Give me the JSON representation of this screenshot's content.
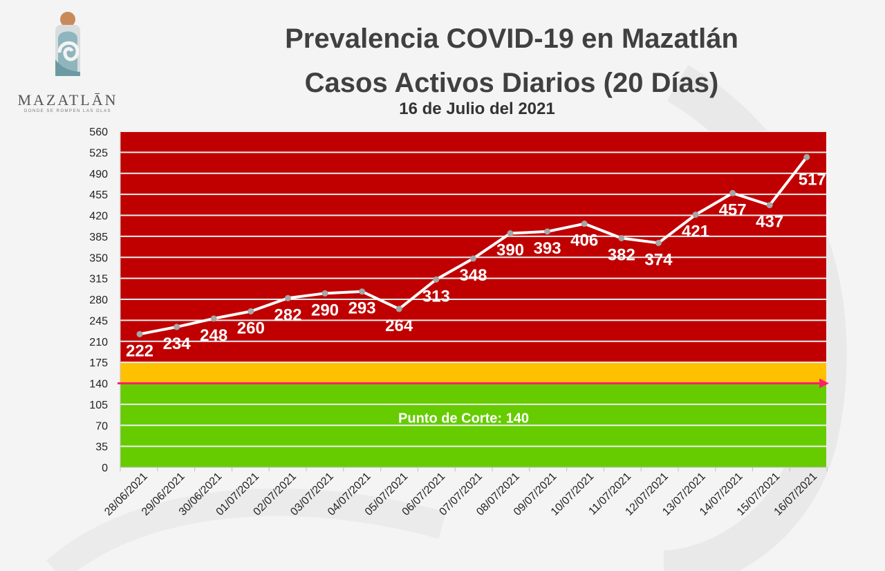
{
  "logo": {
    "name": "MAZATLĀN",
    "tagline": "DONDE SE ROMPEN LAS OLAS"
  },
  "title_line1": "Prevalencia COVID-19 en Mazatlán",
  "title_line2": "Casos Activos Diarios (20 Días)",
  "subtitle": "16 de Julio del 2021",
  "chart_data": {
    "type": "line",
    "categories": [
      "28/06/2021",
      "29/06/2021",
      "30/06/2021",
      "01/07/2021",
      "02/07/2021",
      "03/07/2021",
      "04/07/2021",
      "05/07/2021",
      "06/07/2021",
      "07/07/2021",
      "08/07/2021",
      "09/07/2021",
      "10/07/2021",
      "11/07/2021",
      "12/07/2021",
      "13/07/2021",
      "14/07/2021",
      "15/07/2021",
      "16/07/2021"
    ],
    "values": [
      222,
      234,
      248,
      260,
      282,
      290,
      293,
      264,
      313,
      348,
      390,
      393,
      406,
      382,
      374,
      421,
      457,
      437,
      517
    ],
    "ylim": [
      0,
      560
    ],
    "yticks": [
      0,
      35,
      70,
      105,
      140,
      175,
      210,
      245,
      280,
      315,
      350,
      385,
      420,
      455,
      490,
      525,
      560
    ],
    "bands": [
      {
        "from": 0,
        "to": 140,
        "color": "#66cc00"
      },
      {
        "from": 140,
        "to": 175,
        "color": "#ffc000"
      },
      {
        "from": 175,
        "to": 560,
        "color": "#c00000"
      }
    ],
    "cutoff": {
      "value": 140,
      "label": "Punto de Corte: 140",
      "color": "#ff1f6a"
    },
    "line_color": "#ffffff",
    "marker_color": "#a6a6a6",
    "grid": true
  }
}
